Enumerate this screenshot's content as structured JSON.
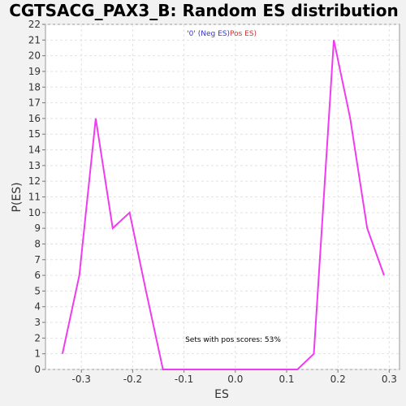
{
  "chart_data": {
    "type": "line",
    "title": "CGTSACG_PAX3_B: Random ES distribution",
    "xlabel": "ES",
    "ylabel": "P(ES)",
    "xlim": [
      -0.37,
      0.32
    ],
    "ylim": [
      0,
      22
    ],
    "x_ticks": [
      -0.3,
      -0.2,
      -0.1,
      0.0,
      0.1,
      0.2,
      0.3
    ],
    "x_tick_labels": [
      "-0.3",
      "-0.2",
      "-0.1",
      "0.0",
      "0.1",
      "0.2",
      "0.3"
    ],
    "y_ticks": [
      0,
      1,
      2,
      3,
      4,
      5,
      6,
      7,
      8,
      9,
      10,
      11,
      12,
      13,
      14,
      15,
      16,
      17,
      18,
      19,
      20,
      21,
      22
    ],
    "y_tick_labels": [
      "0",
      "1",
      "2",
      "3",
      "4",
      "5",
      "6",
      "7",
      "8",
      "9",
      "10",
      "11",
      "12",
      "13",
      "14",
      "15",
      "16",
      "17",
      "18",
      "19",
      "20",
      "21",
      "22"
    ],
    "grid": true,
    "legend_placement": "top-center",
    "legend": [
      {
        "label": "'0' (Neg ES)",
        "color": "#3333cc"
      },
      {
        "label": "Pos ES)",
        "color": "#cc3333"
      }
    ],
    "annotation": "Sets with pos scores: 53%",
    "series": [
      {
        "color": "#ee3cee",
        "x": [
          -0.337,
          -0.304,
          -0.272,
          -0.239,
          -0.206,
          -0.174,
          -0.141,
          -0.108,
          -0.075,
          -0.043,
          -0.01,
          0.023,
          0.055,
          0.088,
          0.121,
          0.153,
          0.192,
          0.224,
          0.257,
          0.29
        ],
        "y": [
          1,
          6,
          16,
          9,
          10,
          5,
          0,
          0,
          0,
          0,
          0,
          0,
          0,
          0,
          0,
          1,
          21,
          16,
          9,
          6
        ]
      }
    ]
  }
}
